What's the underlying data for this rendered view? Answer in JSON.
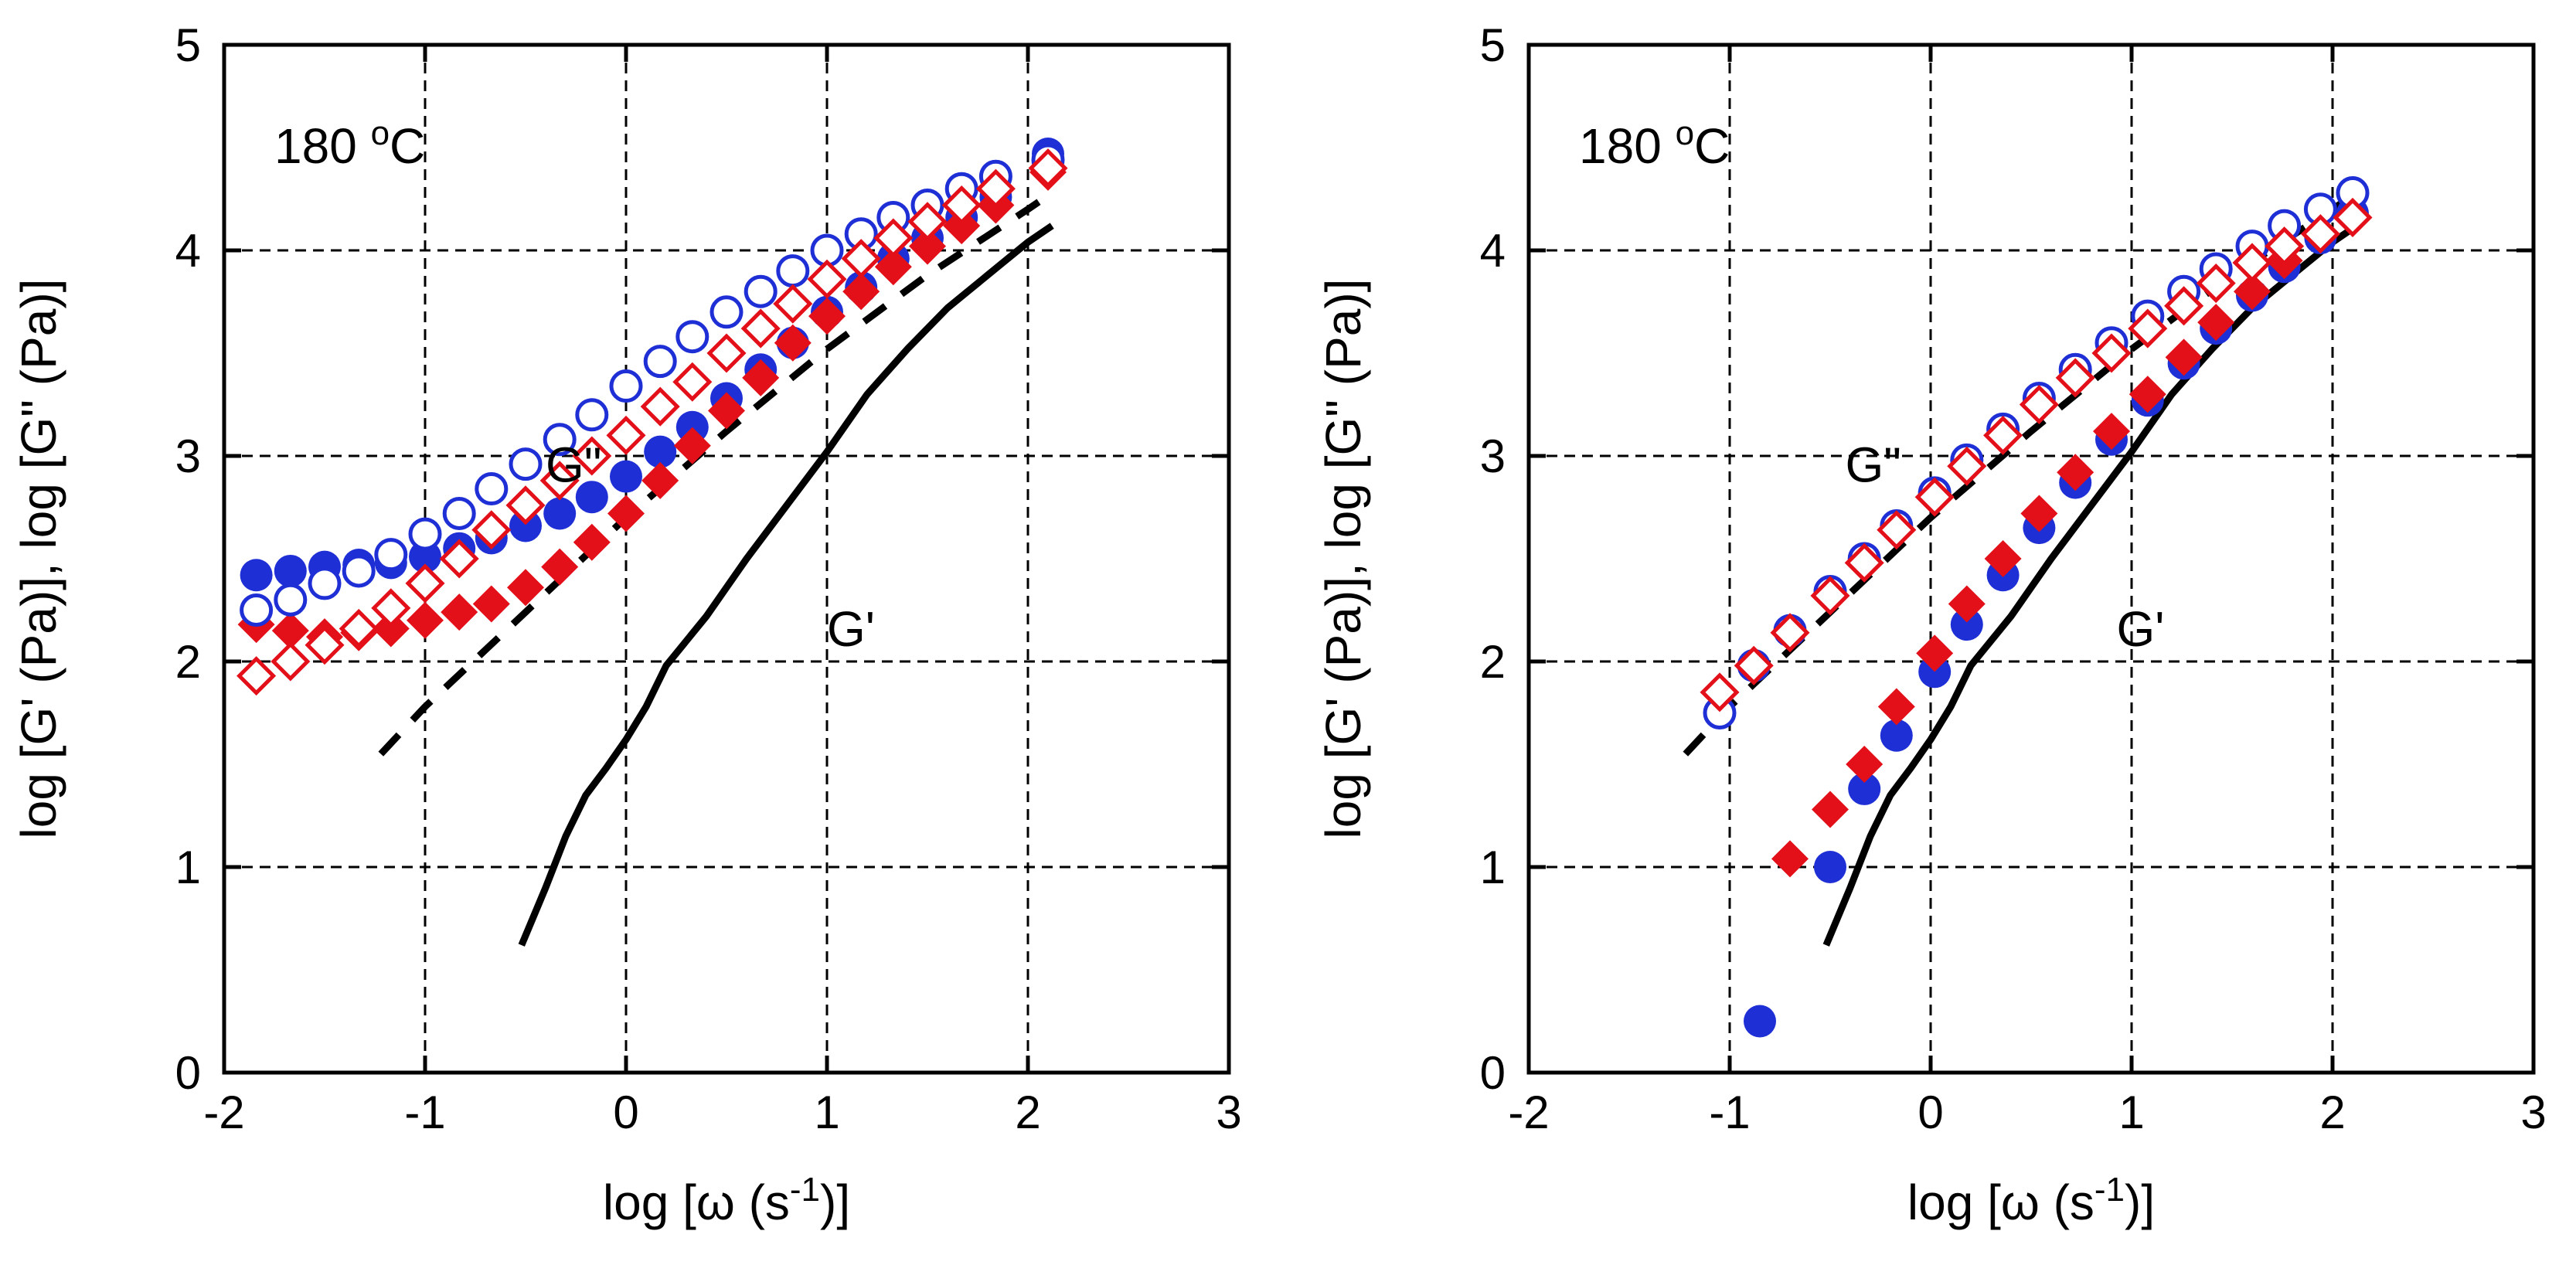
{
  "chart_data": [
    {
      "type": "scatter",
      "xlabel_parts": [
        "log [",
        "ω",
        " (s",
        "-1",
        ")]"
      ],
      "ylabel": "log [G' (Pa)], log [G\" (Pa)]",
      "annotation_temp": [
        "180 ",
        "o",
        "C"
      ],
      "label_Gpp": "G\"",
      "label_Gp": "G'",
      "xlim": [
        -2,
        3
      ],
      "ylim": [
        0,
        5
      ],
      "xticks": [
        "-2",
        "-1",
        "0",
        "1",
        "2",
        "3"
      ],
      "yticks": [
        "0",
        "1",
        "2",
        "3",
        "4",
        "5"
      ],
      "grid": true,
      "colors": {
        "blue": "#1f2fd6",
        "red": "#e3101a",
        "black": "#000000"
      },
      "series": [
        {
          "name": "G' blue filled",
          "marker": "circle-filled",
          "color": "blue",
          "x": [
            -1.84,
            -1.67,
            -1.5,
            -1.33,
            -1.17,
            -1.0,
            -0.83,
            -0.67,
            -0.5,
            -0.33,
            -0.17,
            0.0,
            0.17,
            0.33,
            0.5,
            0.67,
            0.83,
            1.0,
            1.17,
            1.33,
            1.5,
            1.67,
            1.84,
            2.1
          ],
          "y": [
            2.42,
            2.44,
            2.46,
            2.47,
            2.48,
            2.51,
            2.55,
            2.6,
            2.66,
            2.72,
            2.8,
            2.9,
            3.02,
            3.14,
            3.28,
            3.42,
            3.55,
            3.7,
            3.82,
            3.96,
            4.06,
            4.16,
            4.26,
            4.47
          ]
        },
        {
          "name": "G'' blue open",
          "marker": "circle-open",
          "color": "blue",
          "x": [
            -1.84,
            -1.67,
            -1.5,
            -1.33,
            -1.17,
            -1.0,
            -0.83,
            -0.67,
            -0.5,
            -0.33,
            -0.17,
            0.0,
            0.17,
            0.33,
            0.5,
            0.67,
            0.83,
            1.0,
            1.17,
            1.33,
            1.5,
            1.67,
            1.84,
            2.1
          ],
          "y": [
            2.25,
            2.3,
            2.38,
            2.44,
            2.52,
            2.62,
            2.72,
            2.84,
            2.96,
            3.08,
            3.2,
            3.34,
            3.46,
            3.58,
            3.7,
            3.8,
            3.9,
            4.0,
            4.08,
            4.16,
            4.22,
            4.3,
            4.36,
            4.44
          ]
        },
        {
          "name": "G' red filled",
          "marker": "diamond-filled",
          "color": "red",
          "x": [
            -1.84,
            -1.67,
            -1.5,
            -1.33,
            -1.17,
            -1.0,
            -0.83,
            -0.67,
            -0.5,
            -0.33,
            -0.17,
            0.0,
            0.17,
            0.33,
            0.5,
            0.67,
            0.83,
            1.0,
            1.17,
            1.33,
            1.5,
            1.67,
            1.84,
            2.1
          ],
          "y": [
            2.18,
            2.15,
            2.12,
            2.14,
            2.16,
            2.2,
            2.24,
            2.28,
            2.36,
            2.46,
            2.58,
            2.72,
            2.88,
            3.05,
            3.22,
            3.38,
            3.55,
            3.68,
            3.8,
            3.92,
            4.02,
            4.12,
            4.22,
            4.38
          ]
        },
        {
          "name": "G'' red open",
          "marker": "diamond-open",
          "color": "red",
          "x": [
            -1.84,
            -1.67,
            -1.5,
            -1.33,
            -1.17,
            -1.0,
            -0.83,
            -0.67,
            -0.5,
            -0.33,
            -0.17,
            0.0,
            0.17,
            0.33,
            0.5,
            0.67,
            0.83,
            1.0,
            1.17,
            1.33,
            1.5,
            1.67,
            1.84,
            2.1
          ],
          "y": [
            1.93,
            2.0,
            2.08,
            2.16,
            2.26,
            2.38,
            2.5,
            2.64,
            2.76,
            2.88,
            3.0,
            3.1,
            3.24,
            3.36,
            3.5,
            3.62,
            3.74,
            3.86,
            3.96,
            4.06,
            4.14,
            4.22,
            4.3,
            4.4
          ]
        },
        {
          "name": "G' reference",
          "line": "solid",
          "color": "black",
          "x": [
            -0.52,
            -0.4,
            -0.3,
            -0.2,
            -0.1,
            0.0,
            0.1,
            0.2,
            0.4,
            0.6,
            0.8,
            1.0,
            1.2,
            1.4,
            1.6,
            1.8,
            2.0,
            2.12
          ],
          "y": [
            0.62,
            0.9,
            1.15,
            1.35,
            1.48,
            1.62,
            1.78,
            1.98,
            2.22,
            2.5,
            2.76,
            3.02,
            3.3,
            3.52,
            3.72,
            3.88,
            4.04,
            4.12
          ]
        },
        {
          "name": "G'' reference",
          "line": "dashed",
          "color": "black",
          "x": [
            -1.22,
            -1.0,
            -0.5,
            0.0,
            0.5,
            1.0,
            1.5,
            2.0,
            2.12
          ],
          "y": [
            1.55,
            1.78,
            2.24,
            2.7,
            3.12,
            3.52,
            3.88,
            4.2,
            4.28
          ]
        }
      ]
    },
    {
      "type": "scatter",
      "xlabel_parts": [
        "log [",
        "ω",
        " (s",
        "-1",
        ")]"
      ],
      "ylabel": "log [G' (Pa)], log [G\" (Pa)]",
      "annotation_temp": [
        "180 ",
        "o",
        "C"
      ],
      "label_Gpp": "G\"",
      "label_Gp": "G'",
      "xlim": [
        -2,
        3
      ],
      "ylim": [
        0,
        5
      ],
      "xticks": [
        "-2",
        "-1",
        "0",
        "1",
        "2",
        "3"
      ],
      "yticks": [
        "0",
        "1",
        "2",
        "3",
        "4",
        "5"
      ],
      "grid": true,
      "colors": {
        "blue": "#1f2fd6",
        "red": "#e3101a",
        "black": "#000000"
      },
      "series": [
        {
          "name": "G' blue filled",
          "marker": "circle-filled",
          "color": "blue",
          "x": [
            -0.85,
            -0.5,
            -0.33,
            -0.17,
            0.02,
            0.18,
            0.36,
            0.54,
            0.72,
            0.9,
            1.08,
            1.26,
            1.42,
            1.6,
            1.76,
            1.94,
            2.1
          ],
          "y": [
            0.25,
            1.0,
            1.38,
            1.64,
            1.95,
            2.18,
            2.42,
            2.65,
            2.87,
            3.08,
            3.27,
            3.45,
            3.62,
            3.78,
            3.92,
            4.06,
            4.18
          ]
        },
        {
          "name": "G'' blue open",
          "marker": "circle-open",
          "color": "blue",
          "x": [
            -1.05,
            -0.88,
            -0.7,
            -0.5,
            -0.33,
            -0.17,
            0.02,
            0.18,
            0.36,
            0.54,
            0.72,
            0.9,
            1.08,
            1.26,
            1.42,
            1.6,
            1.76,
            1.94,
            2.1
          ],
          "y": [
            1.75,
            1.98,
            2.15,
            2.34,
            2.5,
            2.66,
            2.82,
            2.98,
            3.13,
            3.28,
            3.42,
            3.55,
            3.68,
            3.8,
            3.91,
            4.02,
            4.12,
            4.2,
            4.28
          ]
        },
        {
          "name": "G' red filled",
          "marker": "diamond-filled",
          "color": "red",
          "x": [
            -0.7,
            -0.5,
            -0.33,
            -0.17,
            0.02,
            0.18,
            0.36,
            0.54,
            0.72,
            0.9,
            1.08,
            1.26,
            1.42,
            1.6,
            1.76,
            1.94,
            2.1
          ],
          "y": [
            1.04,
            1.28,
            1.5,
            1.78,
            2.04,
            2.28,
            2.5,
            2.72,
            2.92,
            3.12,
            3.3,
            3.48,
            3.65,
            3.8,
            3.95,
            4.08,
            4.16
          ]
        },
        {
          "name": "G'' red open",
          "marker": "diamond-open",
          "color": "red",
          "x": [
            -1.05,
            -0.88,
            -0.7,
            -0.5,
            -0.33,
            -0.17,
            0.02,
            0.18,
            0.36,
            0.54,
            0.72,
            0.9,
            1.08,
            1.26,
            1.42,
            1.6,
            1.76,
            1.94,
            2.1
          ],
          "y": [
            1.85,
            1.98,
            2.14,
            2.32,
            2.48,
            2.64,
            2.8,
            2.95,
            3.1,
            3.25,
            3.38,
            3.5,
            3.62,
            3.73,
            3.84,
            3.94,
            4.02,
            4.08,
            4.16
          ]
        },
        {
          "name": "G' reference",
          "line": "solid",
          "color": "black",
          "x": [
            -0.52,
            -0.4,
            -0.3,
            -0.2,
            -0.1,
            0.0,
            0.1,
            0.2,
            0.4,
            0.6,
            0.8,
            1.0,
            1.2,
            1.4,
            1.6,
            1.8,
            2.0,
            2.12
          ],
          "y": [
            0.62,
            0.9,
            1.15,
            1.35,
            1.48,
            1.62,
            1.78,
            1.98,
            2.22,
            2.5,
            2.76,
            3.02,
            3.3,
            3.52,
            3.72,
            3.88,
            4.04,
            4.12
          ]
        },
        {
          "name": "G'' reference",
          "line": "dashed",
          "color": "black",
          "x": [
            -1.22,
            -1.0,
            -0.5,
            0.0,
            0.5,
            1.0,
            1.5,
            2.0,
            2.12
          ],
          "y": [
            1.55,
            1.78,
            2.24,
            2.7,
            3.12,
            3.52,
            3.88,
            4.2,
            4.28
          ]
        }
      ]
    }
  ]
}
